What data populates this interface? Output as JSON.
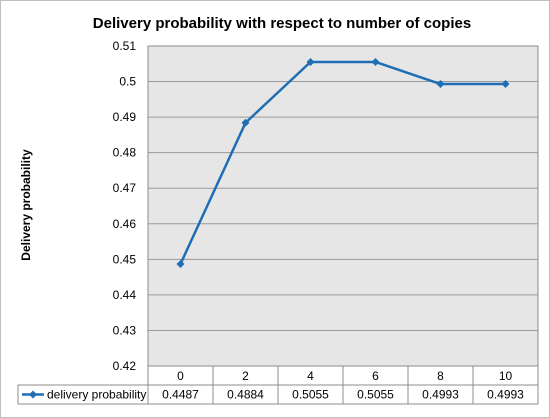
{
  "chart_data": {
    "type": "line",
    "title": "Delivery probability with respect to number of copies",
    "ylabel": "Delivery probability",
    "xlabel": "",
    "ylim": [
      0.42,
      0.51
    ],
    "y_ticks": [
      "0.51",
      "0.5",
      "0.49",
      "0.48",
      "0.47",
      "0.46",
      "0.45",
      "0.44",
      "0.43",
      "0.42"
    ],
    "grid": true,
    "legend": "data-table-left",
    "categories": [
      "0",
      "2",
      "4",
      "6",
      "8",
      "10"
    ],
    "series": [
      {
        "name": "delivery probability",
        "values": [
          0.4487,
          0.4884,
          0.5055,
          0.5055,
          0.4993,
          0.4993
        ],
        "labels": [
          "0.4487",
          "0.4884",
          "0.5055",
          "0.5055",
          "0.4993",
          "0.4993"
        ],
        "color": "#1f6eb5"
      }
    ],
    "plot_background": "#e6e6e6"
  }
}
